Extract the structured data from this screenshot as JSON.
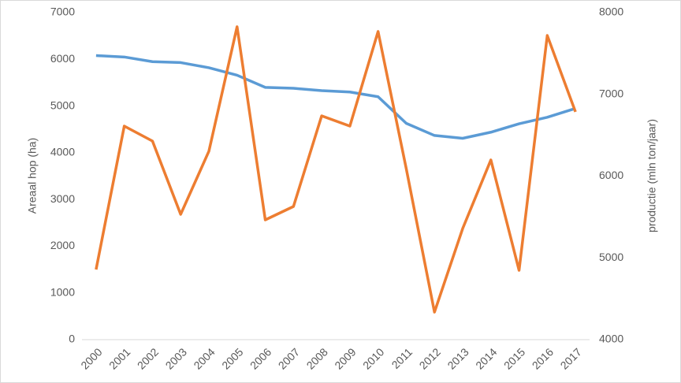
{
  "chart_data": {
    "type": "line",
    "categories": [
      "2000",
      "2001",
      "2002",
      "2003",
      "2004",
      "2005",
      "2006",
      "2007",
      "2008",
      "2009",
      "2010",
      "2011",
      "2012",
      "2013",
      "2014",
      "2015",
      "2016",
      "2017"
    ],
    "series": [
      {
        "name": "Areaal hop (ha)",
        "color": "#5b9bd5",
        "values": [
          6080,
          6050,
          5950,
          5930,
          5820,
          5660,
          5400,
          5380,
          5330,
          5300,
          5200,
          4630,
          4370,
          4310,
          4440,
          4620,
          4760,
          4950
        ]
      },
      {
        "name": "productie (mln ton/jaar)",
        "axis": "y2",
        "color": "#ed7d31",
        "values": [
          4858,
          6612,
          6429,
          5533,
          6304,
          7827,
          5465,
          5629,
          6737,
          6612,
          7769,
          6090,
          4337,
          5359,
          6198,
          4848,
          7720,
          6786
        ]
      }
    ],
    "ylabel": "Areaal hop (ha)",
    "y2label": "productie (mln ton/jaar)",
    "ylim": [
      0,
      7000
    ],
    "yticks": [
      0,
      1000,
      2000,
      3000,
      4000,
      5000,
      6000,
      7000
    ],
    "y2lim": [
      4000,
      8000
    ],
    "y2ticks": [
      4000,
      5000,
      6000,
      7000,
      8000
    ]
  }
}
